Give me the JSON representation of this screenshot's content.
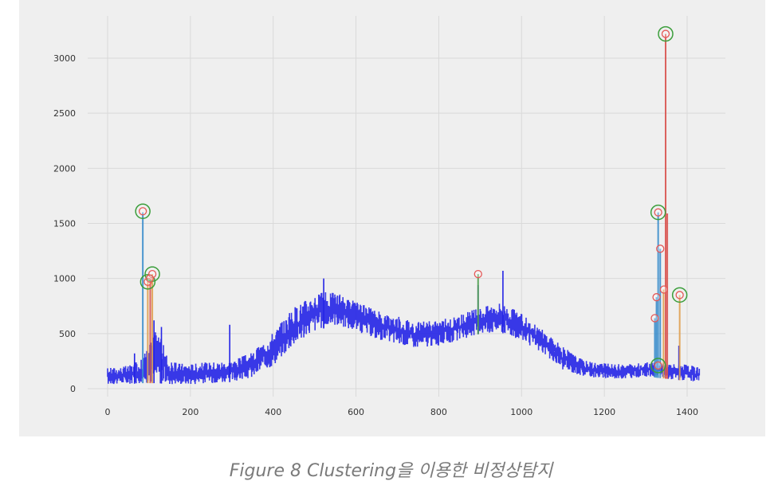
{
  "caption": "Figure 8 Clustering을 이용한 비정상탐지",
  "chart_data": {
    "type": "line",
    "title": "",
    "xlabel": "",
    "ylabel": "",
    "xlim": [
      -40,
      1450
    ],
    "ylim": [
      -100,
      3350
    ],
    "x_ticks": [
      0,
      200,
      400,
      600,
      800,
      1000,
      1200,
      1400
    ],
    "y_ticks": [
      0,
      500,
      1000,
      1500,
      2000,
      2500,
      3000
    ],
    "grid": true,
    "background": "#efefef",
    "colors": {
      "signal": "#2424e6",
      "anomaly_outer": "#3b9e3b",
      "anomaly_inner": "#e45756",
      "spike_blue": "#3a8dcc",
      "spike_orange": "#e0a050",
      "spike_red": "#d9534f",
      "spike_green": "#4f9f4f"
    },
    "signal_envelope": [
      {
        "x": 0,
        "lower": 40,
        "upper": 190
      },
      {
        "x": 50,
        "lower": 40,
        "upper": 210
      },
      {
        "x": 80,
        "lower": 50,
        "upper": 260
      },
      {
        "x": 120,
        "lower": 50,
        "upper": 560
      },
      {
        "x": 150,
        "lower": 40,
        "upper": 240
      },
      {
        "x": 200,
        "lower": 40,
        "upper": 230
      },
      {
        "x": 300,
        "lower": 60,
        "upper": 260
      },
      {
        "x": 350,
        "lower": 100,
        "upper": 330
      },
      {
        "x": 400,
        "lower": 210,
        "upper": 520
      },
      {
        "x": 450,
        "lower": 400,
        "upper": 740
      },
      {
        "x": 500,
        "lower": 520,
        "upper": 870
      },
      {
        "x": 550,
        "lower": 580,
        "upper": 880
      },
      {
        "x": 600,
        "lower": 520,
        "upper": 790
      },
      {
        "x": 650,
        "lower": 450,
        "upper": 710
      },
      {
        "x": 700,
        "lower": 400,
        "upper": 660
      },
      {
        "x": 750,
        "lower": 370,
        "upper": 610
      },
      {
        "x": 800,
        "lower": 390,
        "upper": 620
      },
      {
        "x": 850,
        "lower": 440,
        "upper": 670
      },
      {
        "x": 900,
        "lower": 500,
        "upper": 740
      },
      {
        "x": 950,
        "lower": 510,
        "upper": 790
      },
      {
        "x": 1000,
        "lower": 440,
        "upper": 680
      },
      {
        "x": 1050,
        "lower": 320,
        "upper": 540
      },
      {
        "x": 1100,
        "lower": 170,
        "upper": 380
      },
      {
        "x": 1150,
        "lower": 110,
        "upper": 260
      },
      {
        "x": 1200,
        "lower": 90,
        "upper": 230
      },
      {
        "x": 1250,
        "lower": 90,
        "upper": 220
      },
      {
        "x": 1300,
        "lower": 110,
        "upper": 240
      },
      {
        "x": 1350,
        "lower": 90,
        "upper": 230
      },
      {
        "x": 1400,
        "lower": 70,
        "upper": 220
      },
      {
        "x": 1430,
        "lower": 50,
        "upper": 190
      }
    ],
    "signal_spikes": [
      {
        "x": 65,
        "y": 320
      },
      {
        "x": 112,
        "y": 620
      },
      {
        "x": 130,
        "y": 560
      },
      {
        "x": 295,
        "y": 580
      },
      {
        "x": 522,
        "y": 1000
      },
      {
        "x": 895,
        "y": 940
      },
      {
        "x": 955,
        "y": 1070
      },
      {
        "x": 1380,
        "y": 390
      }
    ],
    "anomaly_spikes": [
      {
        "x": 85,
        "y": 1600,
        "color": "spike_blue"
      },
      {
        "x": 97,
        "y": 970,
        "color": "spike_orange"
      },
      {
        "x": 103,
        "y": 1000,
        "color": "spike_red"
      },
      {
        "x": 108,
        "y": 1040,
        "color": "spike_orange"
      },
      {
        "x": 895,
        "y": 1040,
        "color": "spike_green"
      },
      {
        "x": 1322,
        "y": 640,
        "color": "spike_blue"
      },
      {
        "x": 1326,
        "y": 830,
        "color": "spike_blue"
      },
      {
        "x": 1330,
        "y": 1600,
        "color": "spike_blue"
      },
      {
        "x": 1335,
        "y": 1270,
        "color": "spike_blue"
      },
      {
        "x": 1343,
        "y": 900,
        "color": "spike_orange"
      },
      {
        "x": 1348,
        "y": 3220,
        "color": "spike_red"
      },
      {
        "x": 1352,
        "y": 1590,
        "color": "spike_red"
      },
      {
        "x": 1382,
        "y": 850,
        "color": "spike_orange"
      }
    ],
    "anomaly_points": [
      {
        "x": 85,
        "y": 1610,
        "outer": true
      },
      {
        "x": 97,
        "y": 970,
        "outer": true
      },
      {
        "x": 108,
        "y": 1040,
        "outer": true
      },
      {
        "x": 102,
        "y": 1000,
        "outer": false
      },
      {
        "x": 895,
        "y": 1040,
        "outer": false
      },
      {
        "x": 1322,
        "y": 640,
        "outer": false
      },
      {
        "x": 1326,
        "y": 830,
        "outer": false
      },
      {
        "x": 1330,
        "y": 1600,
        "outer": true
      },
      {
        "x": 1330,
        "y": 210,
        "outer": true
      },
      {
        "x": 1335,
        "y": 1270,
        "outer": false
      },
      {
        "x": 1344,
        "y": 900,
        "outer": false
      },
      {
        "x": 1348,
        "y": 3220,
        "outer": true
      },
      {
        "x": 1382,
        "y": 850,
        "outer": true
      }
    ]
  }
}
